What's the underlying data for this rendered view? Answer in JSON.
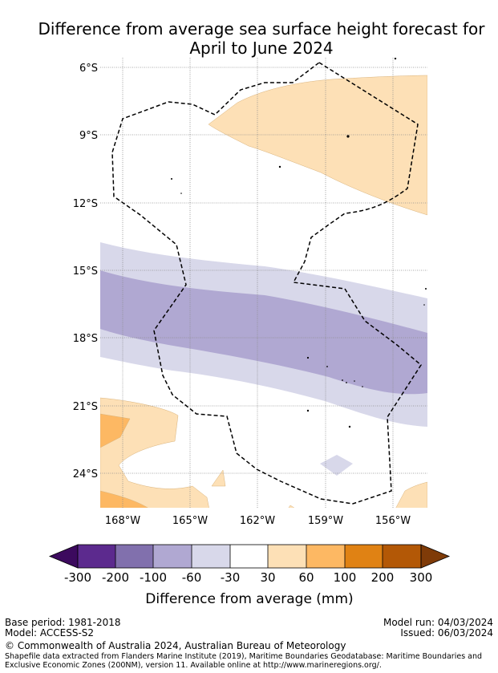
{
  "title": {
    "line1": "Difference from average sea surface height forecast for",
    "line2": "April to June 2024"
  },
  "map": {
    "lat_labels": [
      "6°S",
      "9°S",
      "12°S",
      "15°S",
      "18°S",
      "21°S",
      "24°S"
    ],
    "lon_labels": [
      "168°W",
      "165°W",
      "162°W",
      "159°W",
      "156°W"
    ],
    "boundary_line": "dashed",
    "colors": {
      "neg_300": "#3c0a5e",
      "neg_200": "#5c2a8e",
      "neg_100": "#8170ad",
      "neg_60": "#b0a8d2",
      "neg_30": "#d8d8ea",
      "neutral": "#ffffff",
      "pos_30": "#fde0b6",
      "pos_60": "#fdb863",
      "pos_100": "#e08214",
      "pos_200": "#b35806",
      "pos_300": "#7f3b08"
    }
  },
  "colorbar": {
    "ticks": [
      "-300",
      "-200",
      "-100",
      "-60",
      "-30",
      "30",
      "60",
      "100",
      "200",
      "300"
    ],
    "label": "Difference from average (mm)"
  },
  "footer": {
    "base_period": "Base period: 1981-2018",
    "model": "Model: ACCESS-S2",
    "model_run": "Model run: 04/03/2024",
    "issued": "Issued: 06/03/2024",
    "copyright": "© Commonwealth of Australia 2024, Australian Bureau of Meteorology",
    "shapefile_line1": "Shapefile data extracted from Flanders Marine Institute (2019), Maritime Boundaries Geodatabase: Maritime Boundaries and",
    "shapefile_line2": "Exclusive Economic Zones (200NM), version 11. Available online at http://www.marineregions.org/."
  }
}
